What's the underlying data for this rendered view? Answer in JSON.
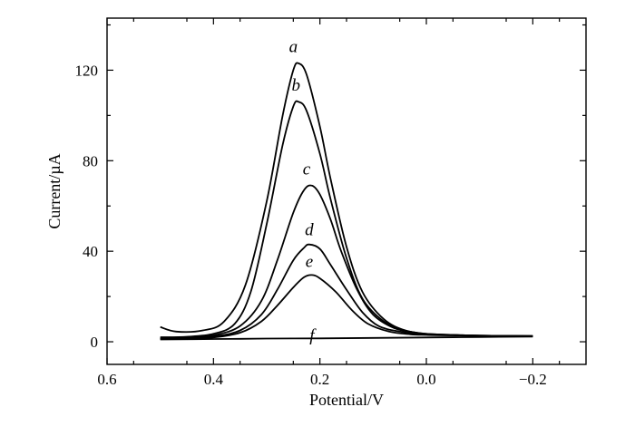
{
  "chart_data": {
    "type": "line",
    "title": "",
    "xlabel": "Potential/V",
    "ylabel": "Current/µA",
    "xlim": [
      0.6,
      -0.3
    ],
    "ylim": [
      -10,
      143
    ],
    "x_ticks": [
      0.6,
      0.4,
      0.2,
      0.0,
      -0.2
    ],
    "x_tick_labels": [
      "0.6",
      "0.4",
      "0.2",
      "0.0",
      "−0.2"
    ],
    "y_ticks": [
      0,
      40,
      80,
      120
    ],
    "y_tick_labels": [
      "0",
      "40",
      "80",
      "120"
    ],
    "grid": false,
    "legend": "none",
    "series": [
      {
        "name": "a",
        "points": [
          [
            0.5,
            6.5
          ],
          [
            0.47,
            4.5
          ],
          [
            0.42,
            5
          ],
          [
            0.38,
            9
          ],
          [
            0.34,
            25
          ],
          [
            0.3,
            62
          ],
          [
            0.27,
            100
          ],
          [
            0.25,
            120
          ],
          [
            0.24,
            123
          ],
          [
            0.225,
            118
          ],
          [
            0.2,
            95
          ],
          [
            0.18,
            72
          ],
          [
            0.15,
            42
          ],
          [
            0.12,
            22
          ],
          [
            0.08,
            10
          ],
          [
            0.04,
            5
          ],
          [
            0.0,
            3.5
          ],
          [
            -0.05,
            3
          ],
          [
            -0.1,
            2.7
          ],
          [
            -0.2,
            2.5
          ]
        ]
      },
      {
        "name": "b",
        "points": [
          [
            0.5,
            2
          ],
          [
            0.45,
            2.2
          ],
          [
            0.4,
            3.5
          ],
          [
            0.36,
            8
          ],
          [
            0.33,
            22
          ],
          [
            0.3,
            52
          ],
          [
            0.27,
            87
          ],
          [
            0.25,
            104
          ],
          [
            0.24,
            106
          ],
          [
            0.225,
            102
          ],
          [
            0.2,
            83
          ],
          [
            0.18,
            63
          ],
          [
            0.15,
            37
          ],
          [
            0.12,
            19
          ],
          [
            0.08,
            9
          ],
          [
            0.04,
            5
          ],
          [
            0.0,
            3.5
          ],
          [
            -0.05,
            3
          ],
          [
            -0.1,
            2.7
          ],
          [
            -0.2,
            2.5
          ]
        ]
      },
      {
        "name": "c",
        "points": [
          [
            0.5,
            1.5
          ],
          [
            0.45,
            1.8
          ],
          [
            0.4,
            2.8
          ],
          [
            0.35,
            7
          ],
          [
            0.31,
            18
          ],
          [
            0.28,
            36
          ],
          [
            0.25,
            57
          ],
          [
            0.23,
            67
          ],
          [
            0.215,
            69
          ],
          [
            0.2,
            65
          ],
          [
            0.18,
            54
          ],
          [
            0.16,
            40
          ],
          [
            0.13,
            23
          ],
          [
            0.1,
            12
          ],
          [
            0.06,
            6
          ],
          [
            0.02,
            4
          ],
          [
            0.0,
            3.3
          ],
          [
            -0.05,
            3
          ],
          [
            -0.1,
            2.7
          ],
          [
            -0.2,
            2.5
          ]
        ]
      },
      {
        "name": "d",
        "points": [
          [
            0.5,
            1.5
          ],
          [
            0.45,
            1.6
          ],
          [
            0.4,
            2.3
          ],
          [
            0.35,
            5
          ],
          [
            0.31,
            12
          ],
          [
            0.28,
            23
          ],
          [
            0.25,
            36
          ],
          [
            0.23,
            41.5
          ],
          [
            0.22,
            43
          ],
          [
            0.2,
            41
          ],
          [
            0.18,
            34
          ],
          [
            0.15,
            23
          ],
          [
            0.12,
            13
          ],
          [
            0.09,
            7
          ],
          [
            0.05,
            4.5
          ],
          [
            0.0,
            3.2
          ],
          [
            -0.05,
            2.9
          ],
          [
            -0.1,
            2.7
          ],
          [
            -0.2,
            2.5
          ]
        ]
      },
      {
        "name": "e",
        "points": [
          [
            0.5,
            1.3
          ],
          [
            0.45,
            1.4
          ],
          [
            0.4,
            1.9
          ],
          [
            0.35,
            4
          ],
          [
            0.31,
            9
          ],
          [
            0.28,
            16
          ],
          [
            0.25,
            24
          ],
          [
            0.23,
            28.5
          ],
          [
            0.215,
            29.5
          ],
          [
            0.2,
            28
          ],
          [
            0.17,
            22
          ],
          [
            0.14,
            14
          ],
          [
            0.11,
            8
          ],
          [
            0.07,
            4.5
          ],
          [
            0.03,
            3.3
          ],
          [
            0.0,
            3
          ],
          [
            -0.05,
            2.8
          ],
          [
            -0.1,
            2.6
          ],
          [
            -0.2,
            2.5
          ]
        ]
      },
      {
        "name": "f",
        "points": [
          [
            0.5,
            1.0
          ],
          [
            0.4,
            1.2
          ],
          [
            0.3,
            1.4
          ],
          [
            0.2,
            1.5
          ],
          [
            0.1,
            1.7
          ],
          [
            0.0,
            1.9
          ],
          [
            -0.1,
            2.1
          ],
          [
            -0.2,
            2.3
          ]
        ]
      }
    ],
    "curve_labels": [
      {
        "text": "a",
        "x": 0.25,
        "y": 128
      },
      {
        "text": "b",
        "x": 0.245,
        "y": 111
      },
      {
        "text": "c",
        "x": 0.225,
        "y": 74
      },
      {
        "text": "d",
        "x": 0.22,
        "y": 47
      },
      {
        "text": "e",
        "x": 0.22,
        "y": 33
      },
      {
        "text": "f",
        "x": 0.215,
        "y": 0.5
      }
    ]
  }
}
